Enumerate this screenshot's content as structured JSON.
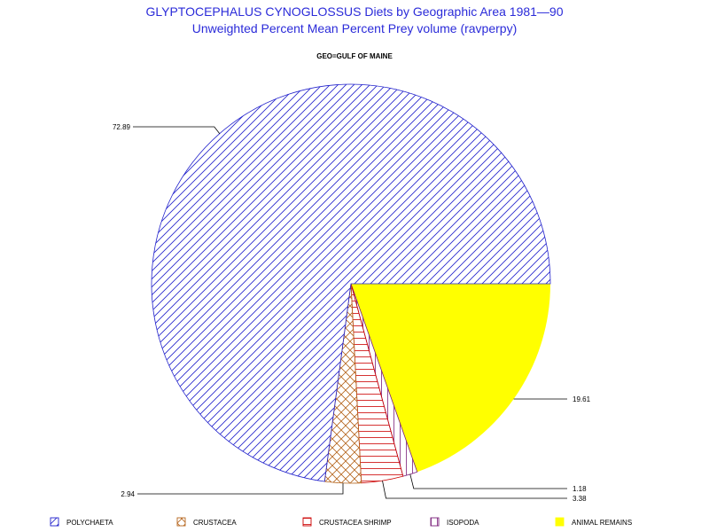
{
  "header": {
    "title": "GLYPTOCEPHALUS CYNOGLOSSUS Diets by Geographic Area 1981—90",
    "subtitle": "Unweighted Percent Mean Percent Prey  volume (ravperpy)",
    "group_label": "GEO=GULF OF MAINE"
  },
  "chart_data": {
    "type": "pie",
    "title": "GLYPTOCEPHALUS CYNOGLOSSUS Diets by Geographic Area 1981—90",
    "subtitle": "Unweighted Percent Mean Percent Prey  volume (ravperpy)",
    "group": "GEO=GULF OF MAINE",
    "legend_position": "bottom",
    "slices": [
      {
        "name": "ANIMAL REMAINS",
        "value": 19.61,
        "label": "19.61",
        "color": "#ffff00",
        "pattern": "solid"
      },
      {
        "name": "ISOPODA",
        "value": 1.18,
        "label": "1.18",
        "color": "#7a1f7a",
        "pattern": "vertical"
      },
      {
        "name": "CRUSTACEA SHRIMP",
        "value": 3.38,
        "label": "3.38",
        "color": "#cc0000",
        "pattern": "horizontal"
      },
      {
        "name": "CRUSTACEA",
        "value": 2.94,
        "label": "2.94",
        "color": "#b5651d",
        "pattern": "crosshatch"
      },
      {
        "name": "POLYCHAETA",
        "value": 72.89,
        "label": "72.89",
        "color": "#2222cc",
        "pattern": "diagonal"
      }
    ]
  },
  "legend": {
    "items": [
      {
        "label": "POLYCHAETA",
        "color": "#2222cc"
      },
      {
        "label": "CRUSTACEA",
        "color": "#b5651d"
      },
      {
        "label": "CRUSTACEA SHRIMP",
        "color": "#cc0000"
      },
      {
        "label": "ISOPODA",
        "color": "#7a1f7a"
      },
      {
        "label": "ANIMAL REMAINS",
        "color": "#ffff00"
      }
    ]
  }
}
